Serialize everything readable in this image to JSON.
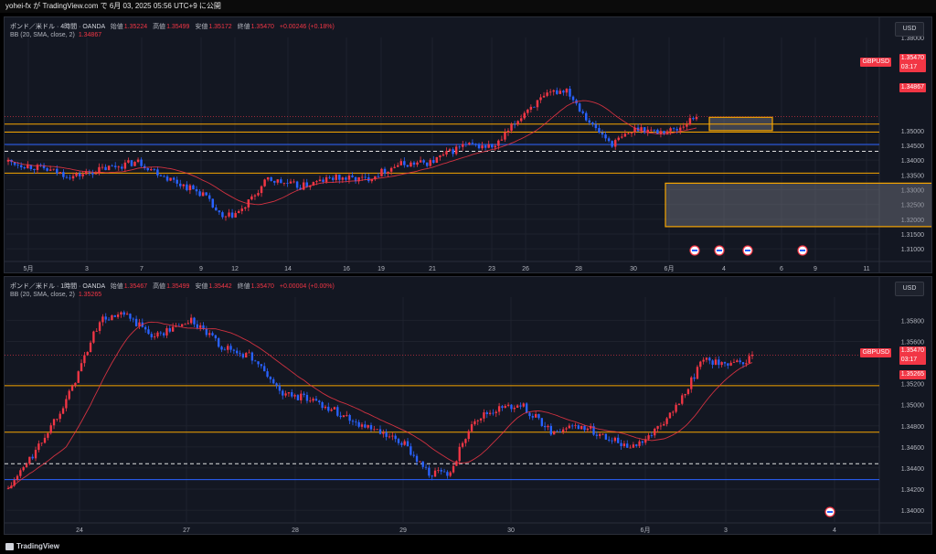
{
  "header": {
    "credit": "yohei-fx が TradingView.com で 6月 03, 2025 05:56 UTC+9 に公開"
  },
  "footer": {
    "brand": "TradingView"
  },
  "colors": {
    "bg": "#131722",
    "up": "#f23645",
    "down": "#2962ff",
    "grid": "#1e222d",
    "bb": "#f23645",
    "level": "#f7a600",
    "zone": "#787b86"
  },
  "panels": [
    {
      "title": "ポンド／米ドル · 4時間 · OANDA",
      "ohlc": [
        {
          "k": "始値",
          "v": "1.35224"
        },
        {
          "k": "高値",
          "v": "1.35499"
        },
        {
          "k": "安値",
          "v": "1.35172"
        },
        {
          "k": "終値",
          "v": "1.35470"
        }
      ],
      "change": "+0.00246 (+0.18%)",
      "indicator": {
        "name": "BB (20, SMA, close, 2)",
        "value": "1.34867"
      },
      "currency_button": "USD",
      "symbol_tag": "GBPUSD",
      "price_tag": "1.35470",
      "countdown": "03:17",
      "bb_tag": "1.34867"
    },
    {
      "title": "ポンド／米ドル · 1時間 · OANDA",
      "ohlc": [
        {
          "k": "始値",
          "v": "1.35467"
        },
        {
          "k": "高値",
          "v": "1.35499"
        },
        {
          "k": "安値",
          "v": "1.35442"
        },
        {
          "k": "終値",
          "v": "1.35470"
        }
      ],
      "change": "+0.00004 (+0.00%)",
      "indicator": {
        "name": "BB (20, SMA, close, 2)",
        "value": "1.35265"
      },
      "currency_button": "USD",
      "symbol_tag": "GBPUSD",
      "price_tag": "1.35470",
      "countdown": "03:17",
      "bb_tag": "1.35265"
    }
  ],
  "chart_data": [
    {
      "type": "candlestick",
      "title": "ポンド／米ドル · 4時間 · OANDA",
      "y_ticks": [
        "1.35000",
        "1.34500",
        "1.34000",
        "1.33500",
        "1.33000",
        "1.32500",
        "1.32000",
        "1.31500",
        "1.31000"
      ],
      "y_top_tick": "1.38000",
      "ylim": [
        1.3085,
        1.3815
      ],
      "x_ticks": [
        "5月",
        "3",
        "7",
        "9",
        "12",
        "14",
        "16",
        "19",
        "21",
        "23",
        "26",
        "28",
        "30",
        "6月",
        "4",
        "6",
        "9",
        "11"
      ],
      "anchors": [
        [
          0,
          1.3395
        ],
        [
          10,
          1.3372
        ],
        [
          20,
          1.3345
        ],
        [
          30,
          1.3372
        ],
        [
          40,
          1.3395
        ],
        [
          50,
          1.3335
        ],
        [
          60,
          1.3285
        ],
        [
          66,
          1.32
        ],
        [
          72,
          1.323
        ],
        [
          80,
          1.3335
        ],
        [
          90,
          1.331
        ],
        [
          100,
          1.334
        ],
        [
          110,
          1.3335
        ],
        [
          120,
          1.3385
        ],
        [
          130,
          1.3392
        ],
        [
          140,
          1.345
        ],
        [
          150,
          1.3445
        ],
        [
          160,
          1.3575
        ],
        [
          168,
          1.363
        ],
        [
          172,
          1.364
        ],
        [
          180,
          1.3515
        ],
        [
          186,
          1.3455
        ],
        [
          194,
          1.351
        ],
        [
          200,
          1.3495
        ],
        [
          206,
          1.3505
        ],
        [
          212,
          1.355
        ]
      ],
      "horizontal_levels": [
        1.3522,
        1.3495,
        1.3356
      ],
      "dashed_levels": [
        1.343,
        1.3453
      ],
      "zones": [
        [
          1.3545,
          1.35
        ],
        [
          1.3322,
          1.3175
        ]
      ],
      "last_price": 1.3547,
      "bb_value": 1.34867
    },
    {
      "type": "candlestick",
      "title": "ポンド／米ドル · 1時間 · OANDA",
      "y_ticks": [
        "1.35800",
        "1.35600",
        "1.35200",
        "1.35000",
        "1.34800",
        "1.34600",
        "1.34400",
        "1.34200",
        "1.34000"
      ],
      "ylim": [
        1.3394,
        1.3602
      ],
      "x_ticks": [
        "24",
        "27",
        "28",
        "29",
        "30",
        "6月",
        "3",
        "4"
      ],
      "anchors": [
        [
          0,
          1.342
        ],
        [
          10,
          1.346
        ],
        [
          20,
          1.351
        ],
        [
          30,
          1.358
        ],
        [
          38,
          1.3585
        ],
        [
          48,
          1.3565
        ],
        [
          60,
          1.358
        ],
        [
          70,
          1.3555
        ],
        [
          80,
          1.3545
        ],
        [
          90,
          1.351
        ],
        [
          100,
          1.3505
        ],
        [
          110,
          1.349
        ],
        [
          120,
          1.3475
        ],
        [
          130,
          1.3462
        ],
        [
          138,
          1.3435
        ],
        [
          145,
          1.3435
        ],
        [
          152,
          1.3485
        ],
        [
          160,
          1.3495
        ],
        [
          168,
          1.35
        ],
        [
          178,
          1.3475
        ],
        [
          188,
          1.348
        ],
        [
          196,
          1.347
        ],
        [
          204,
          1.346
        ],
        [
          212,
          1.3475
        ],
        [
          220,
          1.35
        ],
        [
          228,
          1.3545
        ],
        [
          236,
          1.3535
        ],
        [
          244,
          1.3545
        ]
      ],
      "horizontal_levels": [
        1.3518,
        1.3474
      ],
      "dashed_levels": [
        1.3444,
        1.3429
      ],
      "last_price": 1.3547,
      "bb_value": 1.35265
    }
  ]
}
